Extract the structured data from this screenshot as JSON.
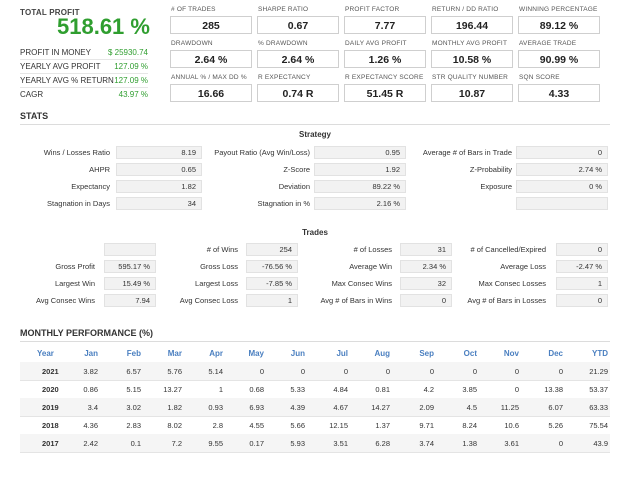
{
  "summary": {
    "total_profit_label": "TOTAL PROFIT",
    "total_profit_value": "518.61 %",
    "rows": [
      {
        "label": "PROFIT IN MONEY",
        "value": "$ 25930.74"
      },
      {
        "label": "YEARLY AVG PROFIT",
        "value": "127.09 %"
      },
      {
        "label": "YEARLY AVG % RETURN",
        "value": "127.09 %"
      },
      {
        "label": "CAGR",
        "value": "43.97 %"
      }
    ]
  },
  "metrics": [
    {
      "label": "# OF TRADES",
      "value": "285"
    },
    {
      "label": "SHARPE RATIO",
      "value": "0.67"
    },
    {
      "label": "PROFIT FACTOR",
      "value": "7.77"
    },
    {
      "label": "RETURN / DD RATIO",
      "value": "196.44"
    },
    {
      "label": "WINNING PERCENTAGE",
      "value": "89.12 %"
    },
    {
      "label": "DRAWDOWN",
      "value": "2.64 %"
    },
    {
      "label": "% DRAWDOWN",
      "value": "2.64 %"
    },
    {
      "label": "DAILY AVG PROFIT",
      "value": "1.26 %"
    },
    {
      "label": "MONTHLY AVG PROFIT",
      "value": "10.58 %"
    },
    {
      "label": "AVERAGE TRADE",
      "value": "90.99 %"
    },
    {
      "label": "ANNUAL % / MAX DD %",
      "value": "16.66"
    },
    {
      "label": "R EXPECTANCY",
      "value": "0.74 R"
    },
    {
      "label": "R EXPECTANCY SCORE",
      "value": "51.45 R"
    },
    {
      "label": "STR QUALITY NUMBER",
      "value": "10.87"
    },
    {
      "label": "SQN SCORE",
      "value": "4.33"
    }
  ],
  "stats_title": "STATS",
  "strategy": {
    "title": "Strategy",
    "rows": [
      [
        [
          "Wins / Losses Ratio",
          "8.19"
        ],
        [
          "Payout Ratio (Avg Win/Loss)",
          "0.95"
        ],
        [
          "Average # of Bars in Trade",
          "0"
        ]
      ],
      [
        [
          "AHPR",
          "0.65"
        ],
        [
          "Z-Score",
          "1.92"
        ],
        [
          "Z-Probability",
          "2.74 %"
        ]
      ],
      [
        [
          "Expectancy",
          "1.82"
        ],
        [
          "Deviation",
          "89.22 %"
        ],
        [
          "Exposure",
          "0 %"
        ]
      ],
      [
        [
          "Stagnation in Days",
          "34"
        ],
        [
          "Stagnation in %",
          "2.16 %"
        ],
        [
          "",
          ""
        ]
      ]
    ]
  },
  "trades": {
    "title": "Trades",
    "rows": [
      [
        [
          "",
          ""
        ],
        [
          "# of Wins",
          "254"
        ],
        [
          "# of Losses",
          "31"
        ],
        [
          "# of Cancelled/Expired",
          "0"
        ]
      ],
      [
        [
          "Gross Profit",
          "595.17 %"
        ],
        [
          "Gross Loss",
          "-76.56 %"
        ],
        [
          "Average Win",
          "2.34 %"
        ],
        [
          "Average Loss",
          "-2.47 %"
        ]
      ],
      [
        [
          "Largest Win",
          "15.49 %"
        ],
        [
          "Largest Loss",
          "-7.85 %"
        ],
        [
          "Max Consec Wins",
          "32"
        ],
        [
          "Max Consec Losses",
          "1"
        ]
      ],
      [
        [
          "Avg Consec Wins",
          "7.94"
        ],
        [
          "Avg Consec Loss",
          "1"
        ],
        [
          "Avg # of Bars in Wins",
          "0"
        ],
        [
          "Avg # of Bars in Losses",
          "0"
        ]
      ]
    ]
  },
  "monthly": {
    "title": "MONTHLY PERFORMANCE (%)",
    "headers": [
      "Year",
      "Jan",
      "Feb",
      "Mar",
      "Apr",
      "May",
      "Jun",
      "Jul",
      "Aug",
      "Sep",
      "Oct",
      "Nov",
      "Dec",
      "YTD"
    ],
    "rows": [
      [
        "2021",
        "3.82",
        "6.57",
        "5.76",
        "5.14",
        "0",
        "0",
        "0",
        "0",
        "0",
        "0",
        "0",
        "0",
        "21.29"
      ],
      [
        "2020",
        "0.86",
        "5.15",
        "13.27",
        "1",
        "0.68",
        "5.33",
        "4.84",
        "0.81",
        "4.2",
        "3.85",
        "0",
        "13.38",
        "53.37"
      ],
      [
        "2019",
        "3.4",
        "3.02",
        "1.82",
        "0.93",
        "6.93",
        "4.39",
        "4.67",
        "14.27",
        "2.09",
        "4.5",
        "11.25",
        "6.07",
        "63.33"
      ],
      [
        "2018",
        "4.36",
        "2.83",
        "8.02",
        "2.8",
        "4.55",
        "5.66",
        "12.15",
        "1.37",
        "9.71",
        "8.24",
        "10.6",
        "5.26",
        "75.54"
      ],
      [
        "2017",
        "2.42",
        "0.1",
        "7.2",
        "9.55",
        "0.17",
        "5.93",
        "3.51",
        "6.28",
        "3.74",
        "1.38",
        "3.61",
        "0",
        "43.9"
      ]
    ]
  },
  "colors": {
    "profit_green": "#2f9e2f",
    "header_blue": "#4a7fc0"
  }
}
